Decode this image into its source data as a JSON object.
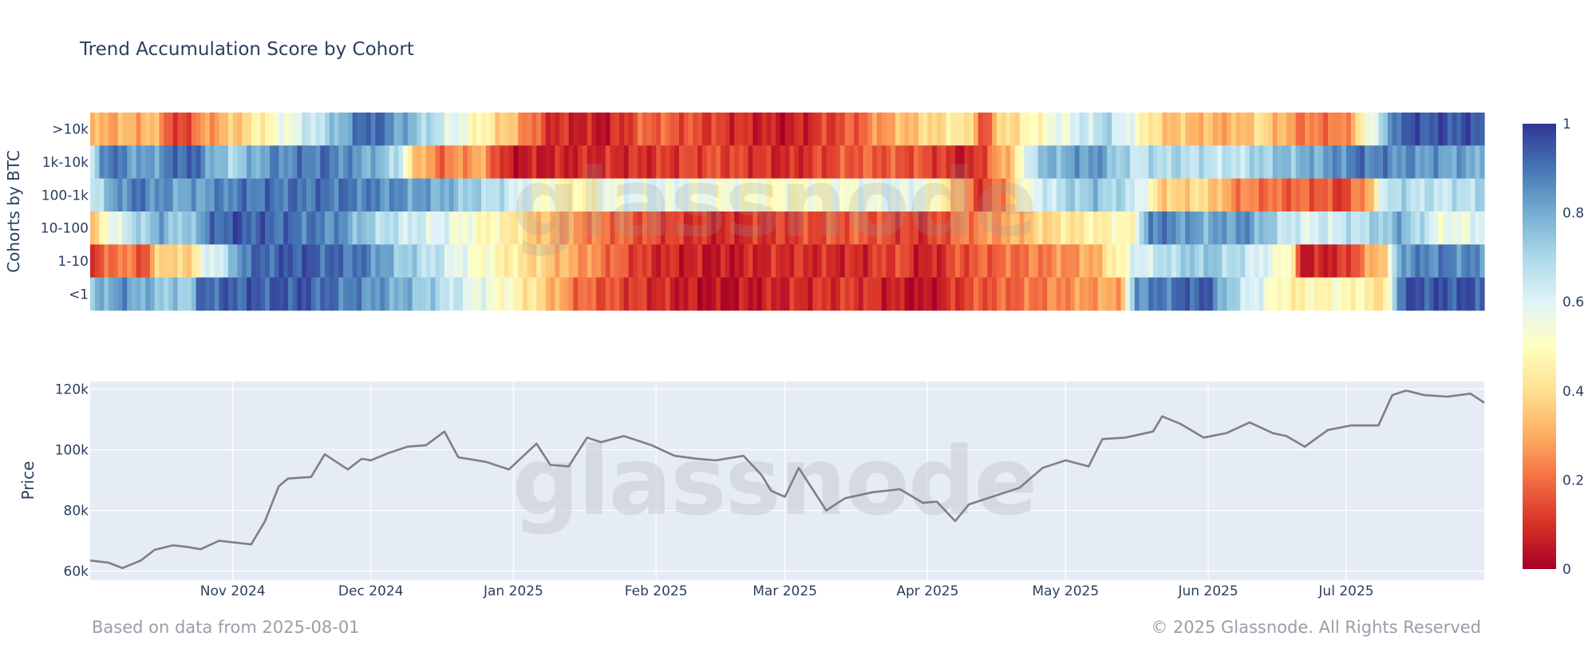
{
  "chart_data": [
    {
      "type": "heatmap",
      "title": "Trend Accumulation Score by Cohort",
      "ylabel": "Cohorts by BTC",
      "rows": [
        ">10k",
        "1k-10k",
        "100-1k",
        "10-100",
        "1-10",
        "<1"
      ],
      "colorscale": "RdYlBu",
      "zlim": [
        0,
        1
      ],
      "colorbar_ticks": [
        "0",
        "0.2",
        "0.4",
        "0.6",
        "0.8",
        "1"
      ],
      "segments": {
        ">10k": [
          [
            0,
            0.3
          ],
          [
            0.05,
            0.32
          ],
          [
            0.06,
            0.08
          ],
          [
            0.08,
            0.25
          ],
          [
            0.11,
            0.38
          ],
          [
            0.14,
            0.55
          ],
          [
            0.17,
            0.7
          ],
          [
            0.2,
            0.95
          ],
          [
            0.25,
            0.65
          ],
          [
            0.3,
            0.35
          ],
          [
            0.33,
            0.1
          ],
          [
            0.37,
            0.05
          ],
          [
            0.4,
            0.2
          ],
          [
            0.45,
            0.12
          ],
          [
            0.5,
            0.05
          ],
          [
            0.55,
            0.18
          ],
          [
            0.57,
            0.28
          ],
          [
            0.6,
            0.38
          ],
          [
            0.63,
            0.45
          ],
          [
            0.64,
            0.1
          ],
          [
            0.65,
            0.35
          ],
          [
            0.68,
            0.5
          ],
          [
            0.73,
            0.7
          ],
          [
            0.77,
            0.35
          ],
          [
            0.82,
            0.3
          ],
          [
            0.84,
            0.4
          ],
          [
            0.87,
            0.22
          ],
          [
            0.9,
            0.22
          ],
          [
            0.94,
            0.95
          ],
          [
            1.0,
            0.95
          ]
        ],
        "1k-10k": [
          [
            0,
            0.55
          ],
          [
            0.01,
            0.92
          ],
          [
            0.04,
            0.8
          ],
          [
            0.07,
            0.95
          ],
          [
            0.1,
            0.7
          ],
          [
            0.13,
            0.85
          ],
          [
            0.17,
            0.9
          ],
          [
            0.2,
            0.8
          ],
          [
            0.22,
            0.7
          ],
          [
            0.23,
            0.4
          ],
          [
            0.25,
            0.2
          ],
          [
            0.28,
            0.3
          ],
          [
            0.3,
            0.05
          ],
          [
            0.35,
            0.08
          ],
          [
            0.4,
            0.1
          ],
          [
            0.45,
            0.15
          ],
          [
            0.5,
            0.08
          ],
          [
            0.55,
            0.18
          ],
          [
            0.6,
            0.15
          ],
          [
            0.63,
            0.05
          ],
          [
            0.66,
            0.35
          ],
          [
            0.68,
            0.75
          ],
          [
            0.72,
            0.85
          ],
          [
            0.75,
            0.65
          ],
          [
            0.77,
            0.7
          ],
          [
            0.82,
            0.65
          ],
          [
            0.85,
            0.75
          ],
          [
            0.88,
            0.8
          ],
          [
            0.91,
            0.9
          ],
          [
            0.94,
            0.85
          ],
          [
            1.0,
            0.8
          ]
        ],
        "100-1k": [
          [
            0,
            0.6
          ],
          [
            0.01,
            0.75
          ],
          [
            0.03,
            0.9
          ],
          [
            0.07,
            0.8
          ],
          [
            0.1,
            0.88
          ],
          [
            0.13,
            0.9
          ],
          [
            0.18,
            0.9
          ],
          [
            0.22,
            0.85
          ],
          [
            0.25,
            0.8
          ],
          [
            0.28,
            0.7
          ],
          [
            0.3,
            0.65
          ],
          [
            0.33,
            0.5
          ],
          [
            0.35,
            0.45
          ],
          [
            0.37,
            0.55
          ],
          [
            0.4,
            0.6
          ],
          [
            0.45,
            0.55
          ],
          [
            0.5,
            0.5
          ],
          [
            0.55,
            0.55
          ],
          [
            0.58,
            0.6
          ],
          [
            0.6,
            0.55
          ],
          [
            0.62,
            0.35
          ],
          [
            0.64,
            0.1
          ],
          [
            0.66,
            0.3
          ],
          [
            0.67,
            0.55
          ],
          [
            0.7,
            0.7
          ],
          [
            0.72,
            0.75
          ],
          [
            0.75,
            0.65
          ],
          [
            0.77,
            0.35
          ],
          [
            0.8,
            0.4
          ],
          [
            0.82,
            0.25
          ],
          [
            0.85,
            0.2
          ],
          [
            0.88,
            0.18
          ],
          [
            0.9,
            0.12
          ],
          [
            0.92,
            0.35
          ],
          [
            0.93,
            0.7
          ],
          [
            0.97,
            0.65
          ],
          [
            1.0,
            0.7
          ]
        ],
        "10-100": [
          [
            0,
            0.35
          ],
          [
            0.02,
            0.6
          ],
          [
            0.05,
            0.8
          ],
          [
            0.07,
            0.7
          ],
          [
            0.08,
            0.85
          ],
          [
            0.1,
            0.95
          ],
          [
            0.15,
            0.9
          ],
          [
            0.18,
            0.85
          ],
          [
            0.2,
            0.72
          ],
          [
            0.22,
            0.65
          ],
          [
            0.25,
            0.6
          ],
          [
            0.28,
            0.5
          ],
          [
            0.3,
            0.45
          ],
          [
            0.32,
            0.35
          ],
          [
            0.35,
            0.25
          ],
          [
            0.4,
            0.15
          ],
          [
            0.45,
            0.08
          ],
          [
            0.5,
            0.12
          ],
          [
            0.55,
            0.18
          ],
          [
            0.6,
            0.1
          ],
          [
            0.62,
            0.2
          ],
          [
            0.66,
            0.3
          ],
          [
            0.69,
            0.4
          ],
          [
            0.72,
            0.45
          ],
          [
            0.75,
            0.5
          ],
          [
            0.76,
            0.9
          ],
          [
            0.8,
            0.8
          ],
          [
            0.83,
            0.85
          ],
          [
            0.85,
            0.7
          ],
          [
            0.87,
            0.6
          ],
          [
            0.9,
            0.65
          ],
          [
            0.92,
            0.7
          ],
          [
            0.94,
            0.8
          ],
          [
            0.97,
            0.55
          ],
          [
            1.0,
            0.6
          ]
        ],
        "1-10": [
          [
            0,
            0.08
          ],
          [
            0.02,
            0.25
          ],
          [
            0.04,
            0.15
          ],
          [
            0.05,
            0.4
          ],
          [
            0.07,
            0.35
          ],
          [
            0.08,
            0.55
          ],
          [
            0.1,
            0.7
          ],
          [
            0.11,
            0.9
          ],
          [
            0.15,
            0.95
          ],
          [
            0.2,
            0.88
          ],
          [
            0.22,
            0.75
          ],
          [
            0.25,
            0.65
          ],
          [
            0.27,
            0.55
          ],
          [
            0.3,
            0.45
          ],
          [
            0.33,
            0.35
          ],
          [
            0.36,
            0.25
          ],
          [
            0.4,
            0.1
          ],
          [
            0.45,
            0.05
          ],
          [
            0.5,
            0.1
          ],
          [
            0.55,
            0.08
          ],
          [
            0.58,
            0.15
          ],
          [
            0.6,
            0.05
          ],
          [
            0.62,
            0.15
          ],
          [
            0.66,
            0.2
          ],
          [
            0.7,
            0.25
          ],
          [
            0.72,
            0.3
          ],
          [
            0.75,
            0.6
          ],
          [
            0.78,
            0.7
          ],
          [
            0.8,
            0.75
          ],
          [
            0.83,
            0.65
          ],
          [
            0.86,
            0.5
          ],
          [
            0.87,
            0.05
          ],
          [
            0.9,
            0.1
          ],
          [
            0.93,
            0.4
          ],
          [
            0.94,
            0.85
          ],
          [
            0.97,
            0.88
          ],
          [
            1.0,
            0.85
          ]
        ],
        "<1": [
          [
            0,
            0.72
          ],
          [
            0.02,
            0.85
          ],
          [
            0.05,
            0.75
          ],
          [
            0.07,
            0.72
          ],
          [
            0.08,
            0.92
          ],
          [
            0.15,
            0.95
          ],
          [
            0.2,
            0.85
          ],
          [
            0.22,
            0.8
          ],
          [
            0.25,
            0.7
          ],
          [
            0.27,
            0.6
          ],
          [
            0.3,
            0.5
          ],
          [
            0.32,
            0.4
          ],
          [
            0.35,
            0.2
          ],
          [
            0.4,
            0.1
          ],
          [
            0.45,
            0.03
          ],
          [
            0.5,
            0.08
          ],
          [
            0.55,
            0.12
          ],
          [
            0.6,
            0.02
          ],
          [
            0.63,
            0.15
          ],
          [
            0.67,
            0.2
          ],
          [
            0.7,
            0.25
          ],
          [
            0.74,
            0.3
          ],
          [
            0.75,
            0.85
          ],
          [
            0.8,
            0.95
          ],
          [
            0.82,
            0.7
          ],
          [
            0.86,
            0.45
          ],
          [
            0.9,
            0.5
          ],
          [
            0.93,
            0.4
          ],
          [
            0.94,
            0.95
          ],
          [
            1.0,
            0.95
          ]
        ]
      }
    },
    {
      "type": "line",
      "ylabel": "Price",
      "ylim": [
        57000,
        122500
      ],
      "y_ticks": [
        60000,
        80000,
        100000,
        120000
      ],
      "y_tick_labels": [
        "60k",
        "80k",
        "100k",
        "120k"
      ],
      "xlim": [
        "2024-10-01",
        "2025-07-31"
      ],
      "x_ticks": [
        "2024-11-01",
        "2024-12-01",
        "2025-01-01",
        "2025-02-01",
        "2025-03-01",
        "2025-04-01",
        "2025-05-01",
        "2025-06-01",
        "2025-07-01"
      ],
      "x_tick_labels": [
        "Nov 2024",
        "Dec 2024",
        "Jan 2025",
        "Feb 2025",
        "Mar 2025",
        "Apr 2025",
        "May 2025",
        "Jun 2025",
        "Jul 2025"
      ],
      "line_color": "#7f7f7f",
      "series": [
        {
          "x": [
            "2024-10-01",
            "2024-10-05",
            "2024-10-08",
            "2024-10-12",
            "2024-10-15",
            "2024-10-19",
            "2024-10-22",
            "2024-10-25",
            "2024-10-29",
            "2024-11-01",
            "2024-11-05",
            "2024-11-08",
            "2024-11-11",
            "2024-11-13",
            "2024-11-18",
            "2024-11-21",
            "2024-11-26",
            "2024-11-29",
            "2024-12-01",
            "2024-12-05",
            "2024-12-09",
            "2024-12-13",
            "2024-12-17",
            "2024-12-20",
            "2024-12-26",
            "2024-12-31",
            "2025-01-06",
            "2025-01-09",
            "2025-01-13",
            "2025-01-17",
            "2025-01-20",
            "2025-01-25",
            "2025-01-31",
            "2025-02-05",
            "2025-02-10",
            "2025-02-14",
            "2025-02-20",
            "2025-02-24",
            "2025-02-26",
            "2025-03-01",
            "2025-03-04",
            "2025-03-10",
            "2025-03-14",
            "2025-03-20",
            "2025-03-26",
            "2025-03-31",
            "2025-04-03",
            "2025-04-07",
            "2025-04-10",
            "2025-04-15",
            "2025-04-21",
            "2025-04-26",
            "2025-05-01",
            "2025-05-06",
            "2025-05-09",
            "2025-05-14",
            "2025-05-20",
            "2025-05-22",
            "2025-05-26",
            "2025-05-31",
            "2025-06-05",
            "2025-06-10",
            "2025-06-15",
            "2025-06-18",
            "2025-06-22",
            "2025-06-27",
            "2025-07-02",
            "2025-07-08",
            "2025-07-11",
            "2025-07-14",
            "2025-07-18",
            "2025-07-23",
            "2025-07-28",
            "2025-07-31"
          ],
          "y": [
            63500,
            62800,
            61000,
            63500,
            67000,
            68500,
            68000,
            67200,
            70000,
            69500,
            68800,
            76500,
            88000,
            90500,
            91000,
            98500,
            93500,
            97000,
            96500,
            99000,
            101000,
            101500,
            106000,
            97500,
            96000,
            93500,
            102000,
            95000,
            94500,
            104000,
            102500,
            104500,
            101500,
            98000,
            97000,
            96500,
            98000,
            91500,
            86500,
            84500,
            94000,
            80000,
            84000,
            86000,
            87000,
            82500,
            82900,
            76500,
            82000,
            84500,
            87500,
            94000,
            96500,
            94500,
            103500,
            104000,
            106000,
            111000,
            108500,
            104000,
            105500,
            109000,
            105500,
            104500,
            101000,
            106500,
            108000,
            108000,
            118000,
            119500,
            118000,
            117500,
            118500,
            115500
          ]
        }
      ]
    }
  ],
  "watermark": "glassnode",
  "footer": {
    "left": "Based on data from 2025-08-01",
    "right": "© 2025 Glassnode. All Rights Reserved"
  }
}
